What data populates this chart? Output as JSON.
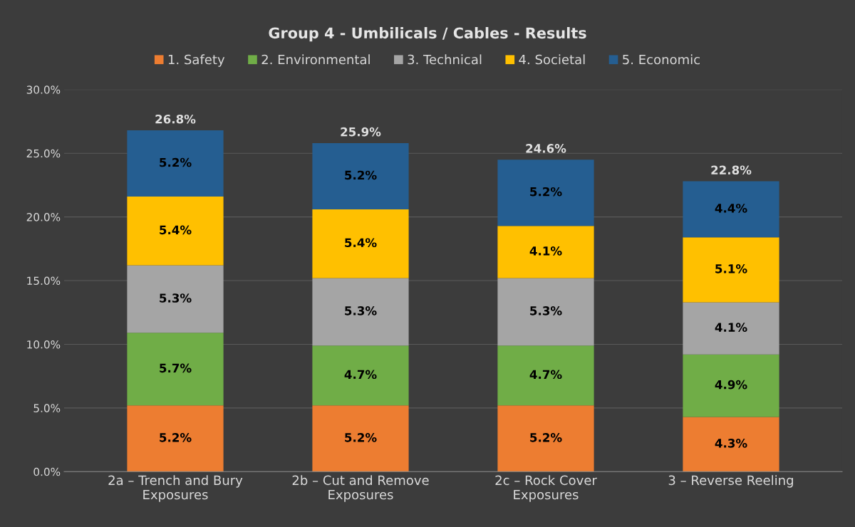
{
  "chart_data": {
    "type": "bar",
    "stacked": true,
    "title": "Group 4 - Umbilicals / Cables - Results",
    "categories": [
      "2a – Trench and Bury Exposures",
      "2b – Cut and Remove Exposures",
      "2c – Rock Cover Exposures",
      "3 – Reverse Reeling"
    ],
    "series": [
      {
        "name": "1. Safety",
        "color": "#ed7d31",
        "values": [
          5.2,
          5.2,
          5.2,
          4.3
        ],
        "value_labels": [
          "5.2%",
          "5.2%",
          "5.2%",
          "4.3%"
        ]
      },
      {
        "name": "2. Environmental",
        "color": "#70ad47",
        "values": [
          5.7,
          4.7,
          4.7,
          4.9
        ],
        "value_labels": [
          "5.7%",
          "4.7%",
          "4.7%",
          "4.9%"
        ]
      },
      {
        "name": "3. Technical",
        "color": "#a5a5a5",
        "values": [
          5.3,
          5.3,
          5.3,
          4.1
        ],
        "value_labels": [
          "5.3%",
          "5.3%",
          "5.3%",
          "4.1%"
        ]
      },
      {
        "name": "4. Societal",
        "color": "#ffc000",
        "values": [
          5.4,
          5.4,
          4.1,
          5.1
        ],
        "value_labels": [
          "5.4%",
          "5.4%",
          "4.1%",
          "5.1%"
        ]
      },
      {
        "name": "5. Economic",
        "color": "#255e91",
        "values": [
          5.2,
          5.2,
          5.2,
          4.4
        ],
        "value_labels": [
          "5.2%",
          "5.2%",
          "5.2%",
          "4.4%"
        ]
      }
    ],
    "totals": [
      "26.8%",
      "25.9%",
      "24.6%",
      "22.8%"
    ],
    "ylim": [
      0,
      30
    ],
    "yticks": [
      {
        "value": 0,
        "label": "0.0%"
      },
      {
        "value": 5,
        "label": "5.0%"
      },
      {
        "value": 10,
        "label": "10.0%"
      },
      {
        "value": 15,
        "label": "15.0%"
      },
      {
        "value": 20,
        "label": "20.0%"
      },
      {
        "value": 25,
        "label": "25.0%"
      },
      {
        "value": 30,
        "label": "30.0%"
      }
    ],
    "grid": "y",
    "legend": "top"
  }
}
